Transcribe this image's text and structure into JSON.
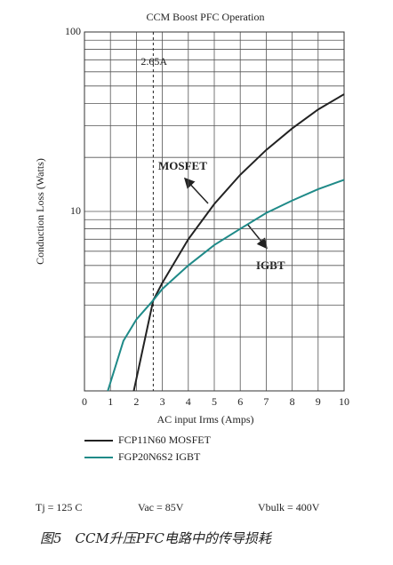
{
  "chart_data": {
    "type": "line",
    "title": "CCM Boost PFC Operation",
    "x_label": "AC input Irms (Amps)",
    "y_label": "Conduction Loss (Watts)",
    "log_y": true,
    "grid": true,
    "xlim": [
      0,
      10
    ],
    "xticks": [
      0,
      1,
      2,
      3,
      4,
      5,
      6,
      7,
      8,
      9,
      10
    ],
    "ylim": [
      1,
      100
    ],
    "yticks": [
      10,
      100
    ],
    "series": [
      {
        "name": "FCP11N60 MOSFET",
        "color": "#222222",
        "x": [
          1.9,
          2.65,
          3,
          4,
          5,
          6,
          7,
          8,
          9,
          10
        ],
        "values": [
          1,
          3.2,
          4,
          7,
          11,
          16,
          22,
          29,
          37,
          45
        ]
      },
      {
        "name": "FGP20N6S2 IGBT",
        "color": "#1f8a88",
        "x": [
          0.9,
          1.5,
          2,
          2.65,
          3,
          4,
          5,
          6,
          7,
          8,
          9,
          10
        ],
        "values": [
          1,
          1.9,
          2.5,
          3.2,
          3.7,
          5,
          6.5,
          8,
          9.8,
          11.5,
          13.3,
          15
        ]
      }
    ],
    "vline": {
      "x": 2.65,
      "label": "2.65A"
    },
    "annotations": [
      "MOSFET",
      "IGBT"
    ],
    "notes": [
      "Tj = 125 C",
      "Vac = 85V",
      "Vbulk = 400V"
    ],
    "caption": "图5　CCM升压PFC电路中的传导损耗"
  }
}
